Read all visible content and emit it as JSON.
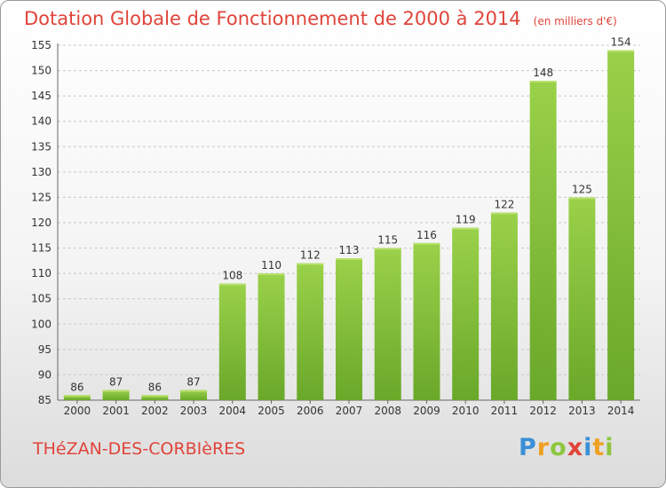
{
  "chart_data": {
    "type": "bar",
    "title": "Dotation Globale de Fonctionnement de 2000 à 2014",
    "units": "(en milliers d'€)",
    "categories": [
      "2000",
      "2001",
      "2002",
      "2003",
      "2004",
      "2005",
      "2006",
      "2007",
      "2008",
      "2009",
      "2010",
      "2011",
      "2012",
      "2013",
      "2014"
    ],
    "values": [
      86,
      87,
      86,
      87,
      108,
      110,
      112,
      113,
      115,
      116,
      119,
      122,
      148,
      125,
      154
    ],
    "ylim": [
      85,
      155
    ],
    "yticks": [
      85,
      90,
      95,
      100,
      105,
      110,
      115,
      120,
      125,
      130,
      135,
      140,
      145,
      150,
      155
    ],
    "grid": true,
    "bar_color": "#8cc63f"
  },
  "footer": {
    "location": "THéZAN-DES-CORBIèRES",
    "logo_text": "Proxiti"
  }
}
